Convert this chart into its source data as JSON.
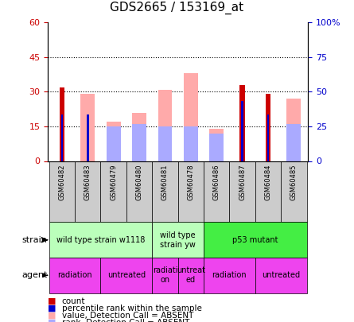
{
  "title": "GDS2665 / 153169_at",
  "samples": [
    "GSM60482",
    "GSM60483",
    "GSM60479",
    "GSM60480",
    "GSM60481",
    "GSM60478",
    "GSM60486",
    "GSM60487",
    "GSM60484",
    "GSM60485"
  ],
  "count": [
    32,
    0,
    0,
    0,
    0,
    0,
    0,
    33,
    29,
    0
  ],
  "percentile": [
    20,
    20,
    0,
    0,
    0,
    0,
    0,
    26,
    20,
    0
  ],
  "value_absent": [
    0,
    29,
    17,
    21,
    31,
    38,
    14,
    0,
    0,
    27
  ],
  "rank_absent": [
    0,
    0,
    15,
    16,
    15,
    15,
    12,
    0,
    0,
    16
  ],
  "ylim_left": [
    0,
    60
  ],
  "ylim_right": [
    0,
    100
  ],
  "yticks_left": [
    0,
    15,
    30,
    45,
    60
  ],
  "ytick_labels_left": [
    "0",
    "15",
    "30",
    "45",
    "60"
  ],
  "yticks_right": [
    0,
    25,
    50,
    75,
    100
  ],
  "ytick_labels_right": [
    "0",
    "25",
    "50",
    "75",
    "100%"
  ],
  "strain_groups": [
    {
      "label": "wild type strain w1118",
      "start": 0,
      "end": 4,
      "color": "#bbffbb"
    },
    {
      "label": "wild type\nstrain yw",
      "start": 4,
      "end": 6,
      "color": "#bbffbb"
    },
    {
      "label": "p53 mutant",
      "start": 6,
      "end": 10,
      "color": "#44ee44"
    }
  ],
  "agent_groups": [
    {
      "label": "radiation",
      "start": 0,
      "end": 2,
      "color": "#ee44ee"
    },
    {
      "label": "untreated",
      "start": 2,
      "end": 4,
      "color": "#ee44ee"
    },
    {
      "label": "radiati\non",
      "start": 4,
      "end": 5,
      "color": "#ee44ee"
    },
    {
      "label": "untreat\ned",
      "start": 5,
      "end": 6,
      "color": "#ee44ee"
    },
    {
      "label": "radiation",
      "start": 6,
      "end": 8,
      "color": "#ee44ee"
    },
    {
      "label": "untreated",
      "start": 8,
      "end": 10,
      "color": "#ee44ee"
    }
  ],
  "color_count": "#cc0000",
  "color_percentile": "#0000cc",
  "color_value_absent": "#ffaaaa",
  "color_rank_absent": "#aaaaff",
  "bar_width": 0.55,
  "bg_color": "#ffffff",
  "plot_bg": "#ffffff"
}
